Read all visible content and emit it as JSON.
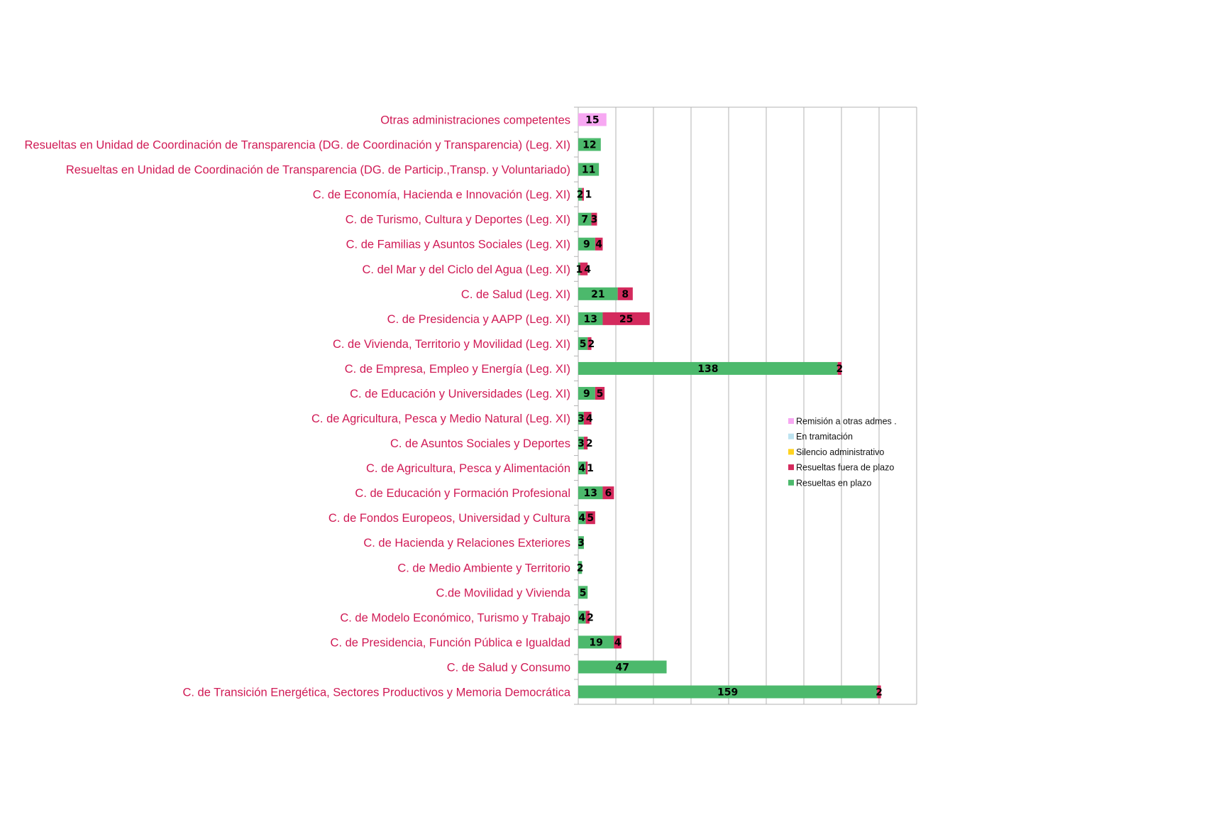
{
  "chart_data": {
    "type": "bar",
    "orientation": "horizontal",
    "stacked": true,
    "title": "",
    "xlabel": "",
    "ylabel": "",
    "xlim": [
      0,
      180
    ],
    "grid": true,
    "legend_position": "right",
    "categories": [
      "Otras administraciones competentes",
      "Resueltas en Unidad de Coordinación de Transparencia (DG. de Coordinación y Transparencia) (Leg. XI)",
      "Resueltas en Unidad de Coordinación de Transparencia (DG. de  Particip.,Transp. y Voluntariado)",
      "C. de Economía, Hacienda e Innovación (Leg. XI)",
      "C. de Turismo, Cultura y Deportes (Leg. XI)",
      "C. de Familias y Asuntos Sociales (Leg. XI)",
      "C. del Mar y del Ciclo del Agua (Leg. XI)",
      "C. de Salud (Leg. XI)",
      "C. de Presidencia y AAPP (Leg. XI)",
      "C. de Vivienda, Territorio y Movilidad (Leg. XI)",
      "C. de Empresa, Empleo y Energía (Leg. XI)",
      "C. de Educación y Universidades (Leg. XI)",
      "C. de Agricultura, Pesca y Medio Natural (Leg. XI)",
      "C. de Asuntos Sociales y Deportes",
      "C. de Agricultura, Pesca y Alimentación",
      "C. de Educación y Formación Profesional",
      "C. de Fondos Europeos, Universidad y Cultura",
      "C. de Hacienda y Relaciones Exteriores",
      "C. de Medio Ambiente y Territorio",
      "C.de Movilidad y Vivienda",
      "C. de Modelo Económico, Turismo y Trabajo",
      "C. de Presidencia, Función Pública e Igualdad",
      "C. de Salud y Consumo",
      "C. de Transición Energética, Sectores Productivos y Memoria Democrática"
    ],
    "series": [
      {
        "name": "Resueltas en plazo",
        "color": "#4cb96c",
        "values": [
          0,
          12,
          11,
          2,
          7,
          9,
          1,
          21,
          13,
          5,
          138,
          9,
          3,
          3,
          4,
          13,
          4,
          3,
          2,
          5,
          4,
          19,
          47,
          159
        ]
      },
      {
        "name": "Resueltas fuera de plazo",
        "color": "#d42a5d",
        "values": [
          0,
          0,
          0,
          1,
          3,
          4,
          4,
          8,
          25,
          2,
          2,
          5,
          4,
          2,
          1,
          6,
          5,
          0,
          0,
          0,
          2,
          4,
          0,
          2
        ]
      },
      {
        "name": "Silencio administrativo",
        "color": "#ffd320",
        "values": [
          0,
          0,
          0,
          0,
          0,
          0,
          0,
          0,
          0,
          0,
          0,
          0,
          0,
          0,
          0,
          0,
          0,
          0,
          0,
          0,
          0,
          0,
          0,
          0
        ]
      },
      {
        "name": "En tramitación",
        "color": "#bde3f0",
        "values": [
          0,
          0,
          0,
          0,
          0,
          0,
          0,
          0,
          0,
          0,
          0,
          0,
          0,
          0,
          0,
          0,
          0,
          0,
          0,
          0,
          0,
          0,
          0,
          0
        ]
      },
      {
        "name": "Remisión a otras admes .",
        "color": "#f7a8f2",
        "values": [
          15,
          0,
          0,
          0,
          0,
          0,
          0,
          0,
          0,
          0,
          0,
          0,
          0,
          0,
          0,
          0,
          0,
          0,
          0,
          0,
          0,
          0,
          0,
          0
        ]
      }
    ],
    "legend_order": [
      "Remisión a otras admes .",
      "En tramitación",
      "Silencio administrativo",
      "Resueltas fuera de plazo",
      "Resueltas en plazo"
    ]
  }
}
